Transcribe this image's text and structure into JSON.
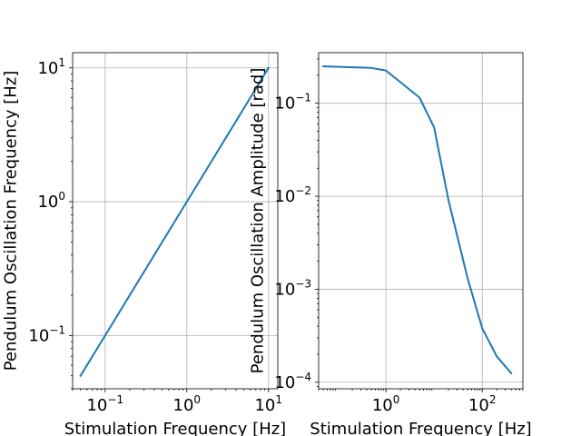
{
  "chart_data": [
    {
      "type": "line",
      "xlabel": "Stimulation Frequency [Hz]",
      "ylabel": "Pendulum Oscillation Frequency [Hz]",
      "xscale": "log",
      "yscale": "log",
      "xlim": [
        0.04,
        13
      ],
      "ylim": [
        0.04,
        13
      ],
      "grid": true,
      "xticks": [
        {
          "value": 0.1,
          "base": "10",
          "exp": "−1"
        },
        {
          "value": 1,
          "base": "10",
          "exp": "0"
        },
        {
          "value": 10,
          "base": "10",
          "exp": "1"
        }
      ],
      "yticks": [
        {
          "value": 0.1,
          "base": "10",
          "exp": "−1"
        },
        {
          "value": 1,
          "base": "10",
          "exp": "0"
        },
        {
          "value": 10,
          "base": "10",
          "exp": "1"
        }
      ],
      "series": [
        {
          "color": "#1f77b4",
          "x": [
            0.05,
            0.1,
            0.5,
            1,
            5,
            10
          ],
          "y": [
            0.05,
            0.1,
            0.5,
            1,
            5,
            10
          ]
        }
      ]
    },
    {
      "type": "line",
      "xlabel": "Stimulation Frequency [Hz]",
      "ylabel": "Pendulum Oscillation Amplitude [rad]",
      "xscale": "log",
      "yscale": "log",
      "xlim": [
        0.04,
        700
      ],
      "ylim": [
        8.5e-05,
        0.35
      ],
      "grid": true,
      "xticks": [
        {
          "value": 1,
          "base": "10",
          "exp": "0"
        },
        {
          "value": 100,
          "base": "10",
          "exp": "2"
        }
      ],
      "yticks": [
        {
          "value": 0.0001,
          "base": "10",
          "exp": "−4"
        },
        {
          "value": 0.001,
          "base": "10",
          "exp": "−3"
        },
        {
          "value": 0.01,
          "base": "10",
          "exp": "−2"
        },
        {
          "value": 0.1,
          "base": "10",
          "exp": "−1"
        }
      ],
      "series": [
        {
          "color": "#1f77b4",
          "x": [
            0.05,
            0.5,
            1,
            5,
            10,
            20,
            50,
            100,
            200,
            400
          ],
          "y": [
            0.25,
            0.24,
            0.225,
            0.115,
            0.055,
            0.009,
            0.0013,
            0.00038,
            0.00019,
            0.000125
          ]
        }
      ]
    }
  ]
}
